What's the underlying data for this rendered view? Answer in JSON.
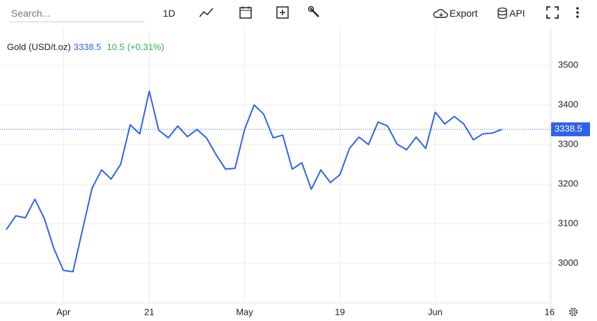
{
  "toolbar": {
    "search_placeholder": "Search...",
    "interval": "1D",
    "export": "Export",
    "api": "API"
  },
  "chart_data": {
    "type": "line",
    "title": "Gold (USD/t.oz)",
    "last_value": 3338.5,
    "change": 10.5,
    "change_percent": 0.31,
    "change_percent_label": "(+0.31%)",
    "categories": [
      null,
      null,
      null,
      null,
      null,
      null,
      "Apr",
      null,
      null,
      null,
      null,
      null,
      null,
      null,
      null,
      "21",
      null,
      null,
      null,
      null,
      null,
      null,
      null,
      null,
      null,
      "May",
      null,
      null,
      null,
      null,
      null,
      null,
      null,
      null,
      null,
      "19",
      null,
      null,
      null,
      null,
      null,
      null,
      null,
      null,
      null,
      "Jun",
      null,
      null,
      null,
      null,
      null,
      null,
      null,
      null,
      null,
      null,
      null,
      "16"
    ],
    "series": [
      {
        "name": "Gold (USD/t.oz)",
        "color": "#2f62e8",
        "values": [
          3085,
          3120,
          3115,
          3162,
          3113,
          3037,
          2982,
          2979,
          3085,
          3190,
          3236,
          3213,
          3250,
          3350,
          3327,
          3435,
          3336,
          3317,
          3347,
          3320,
          3338,
          3317,
          3275,
          3238,
          3240,
          3338,
          3400,
          3377,
          3317,
          3324,
          3238,
          3254,
          3187,
          3236,
          3204,
          3224,
          3290,
          3319,
          3300,
          3357,
          3347,
          3301,
          3287,
          3319,
          3290,
          3382,
          3352,
          3371,
          3352,
          3312,
          3327,
          3329,
          3338.5,
          null,
          null,
          null,
          null,
          null
        ]
      }
    ],
    "ylim": [
      2900,
      3595
    ],
    "yticks": [
      3000,
      3100,
      3200,
      3300,
      3400,
      3500
    ],
    "grid": true
  }
}
